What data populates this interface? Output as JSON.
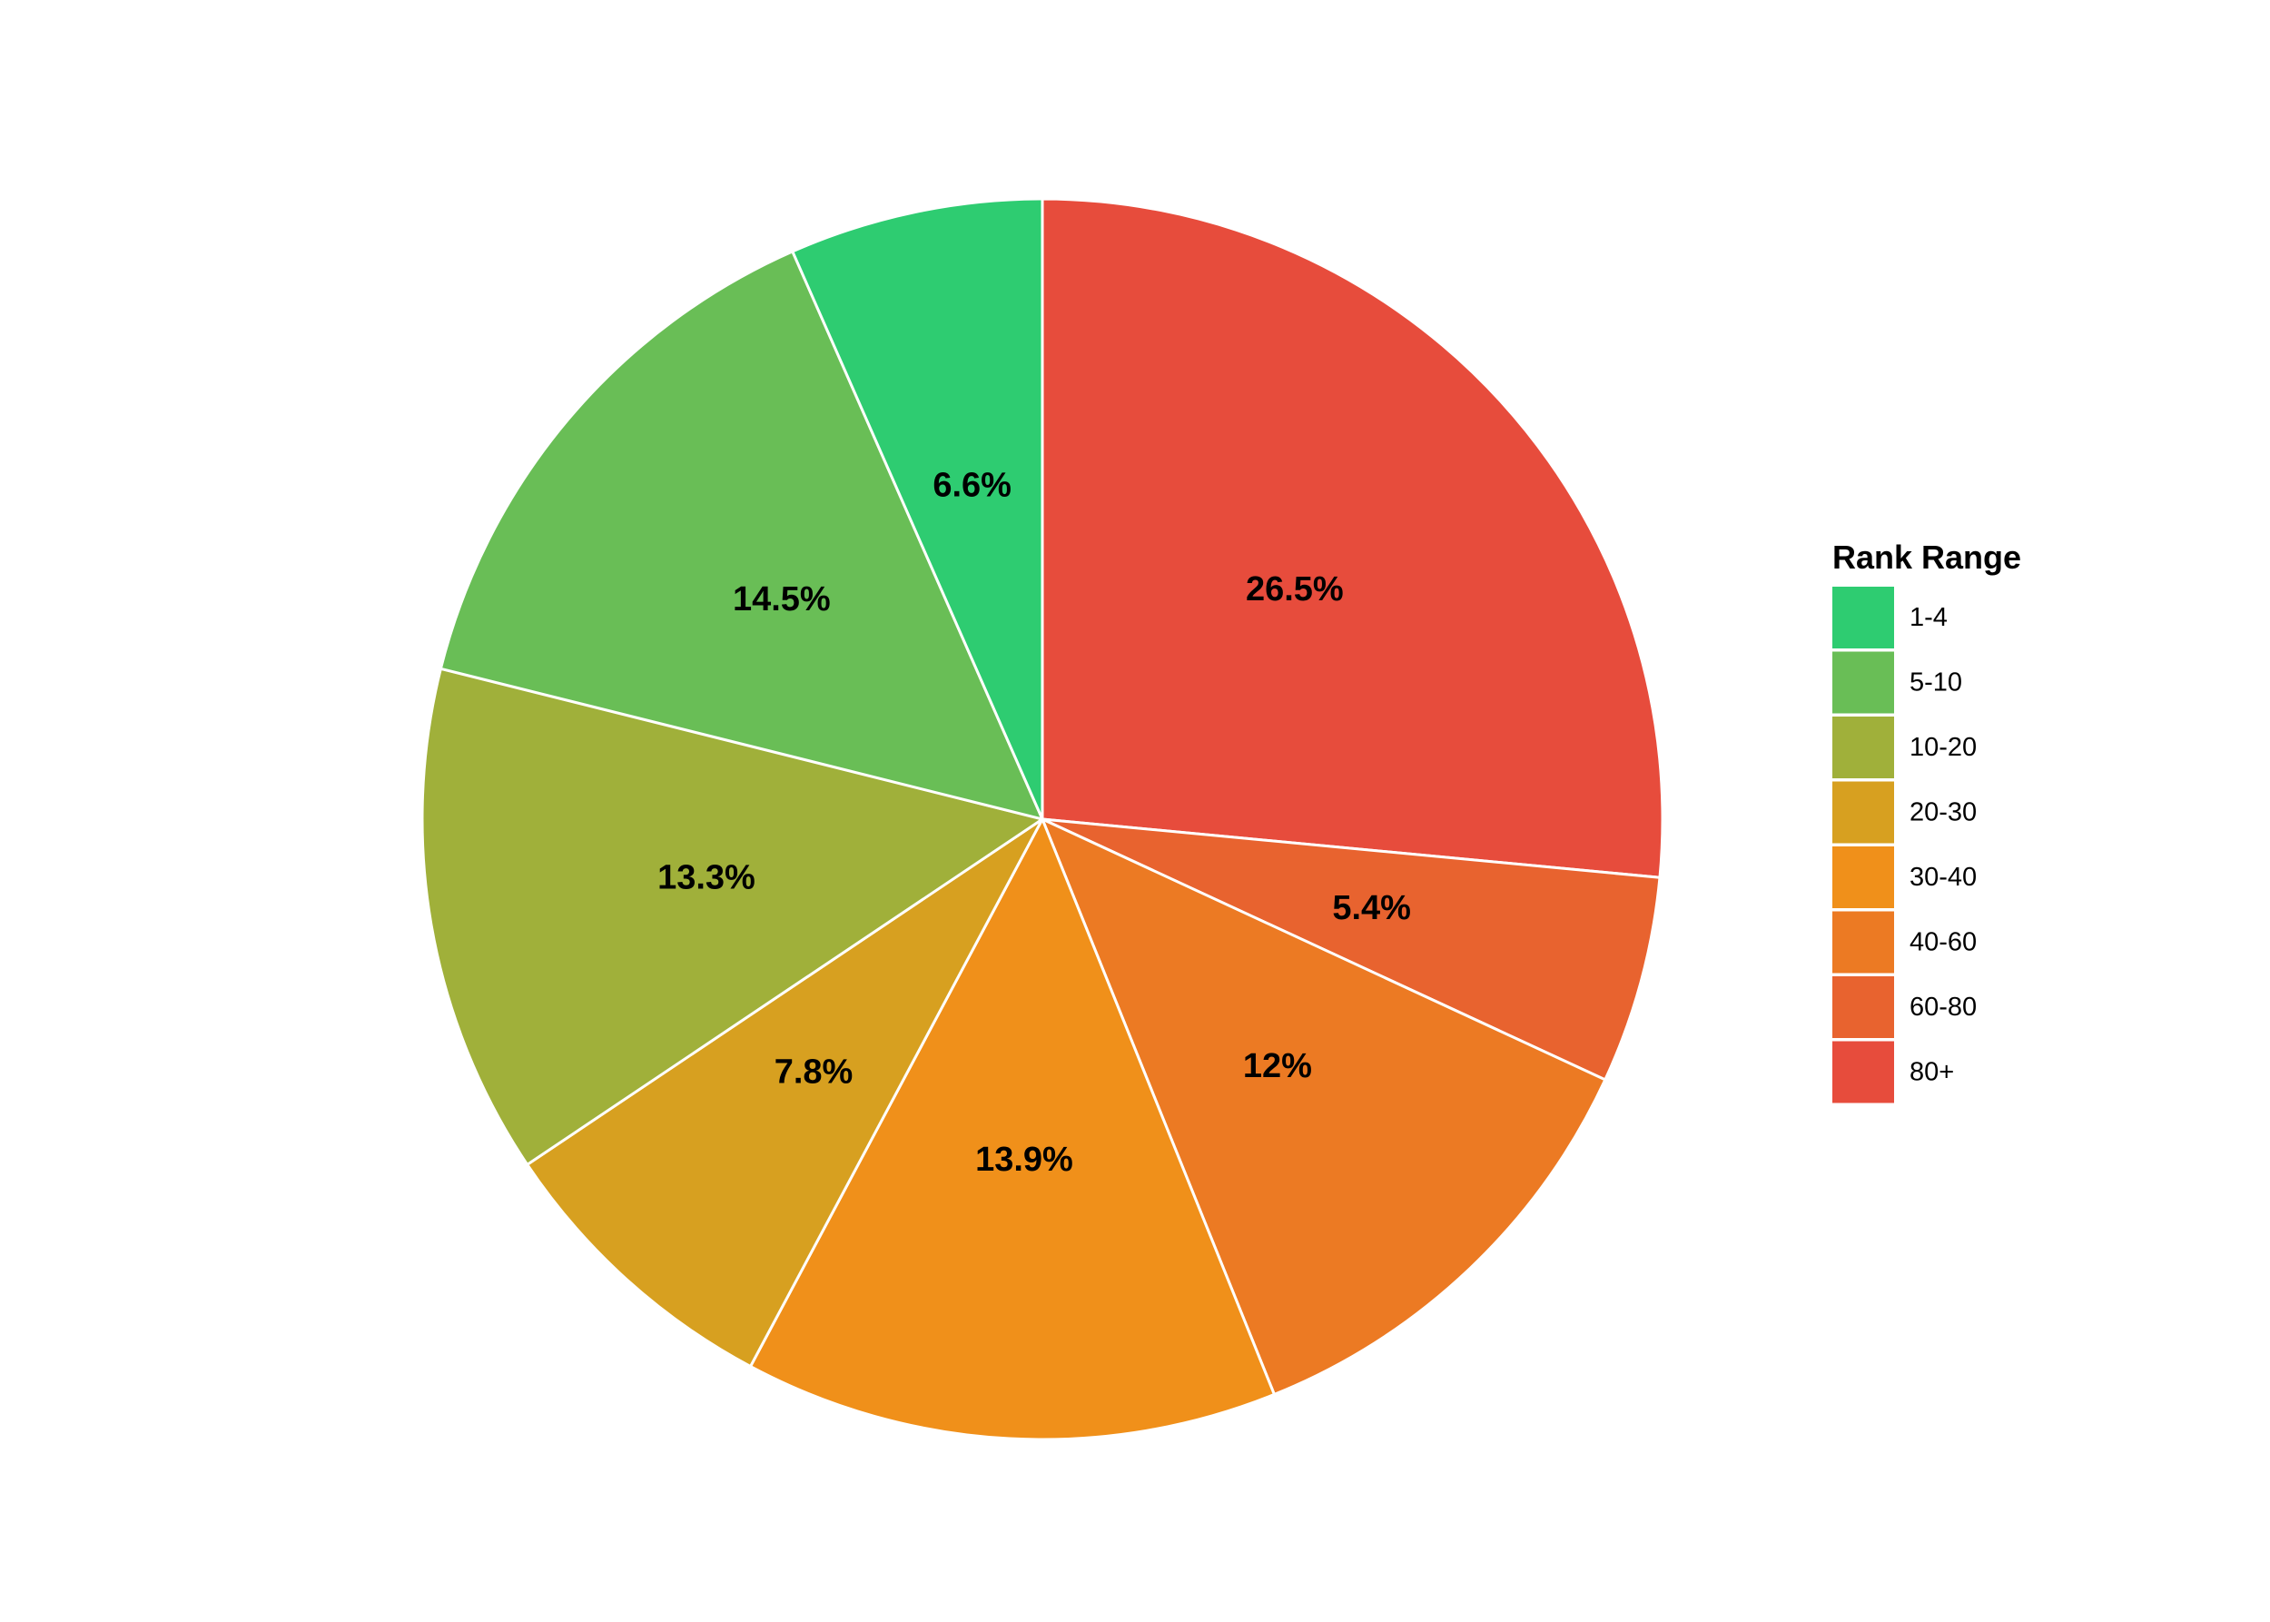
{
  "chart_data": {
    "type": "pie",
    "legend_title": "Rank Range",
    "legend_position": "right",
    "start_angle": "12 o'clock",
    "direction": "clockwise (from 80+)",
    "slices": [
      {
        "category": "80+",
        "value": 26.5,
        "label": "26.5%",
        "color": "#e74c3c"
      },
      {
        "category": "60-80",
        "value": 5.4,
        "label": "5.4%",
        "color": "#e8632f"
      },
      {
        "category": "40-60",
        "value": 12.0,
        "label": "12%",
        "color": "#ec7a23"
      },
      {
        "category": "30-40",
        "value": 13.9,
        "label": "13.9%",
        "color": "#f0901a"
      },
      {
        "category": "20-30",
        "value": 7.8,
        "label": "7.8%",
        "color": "#d7a020"
      },
      {
        "category": "10-20",
        "value": 13.3,
        "label": "13.3%",
        "color": "#a0b03a"
      },
      {
        "category": "5-10",
        "value": 14.5,
        "label": "14.5%",
        "color": "#69be56"
      },
      {
        "category": "1-4",
        "value": 6.6,
        "label": "6.6%",
        "color": "#2ecc71"
      }
    ],
    "legend_order": [
      "1-4",
      "5-10",
      "10-20",
      "20-30",
      "30-40",
      "40-60",
      "60-80",
      "80+"
    ]
  }
}
